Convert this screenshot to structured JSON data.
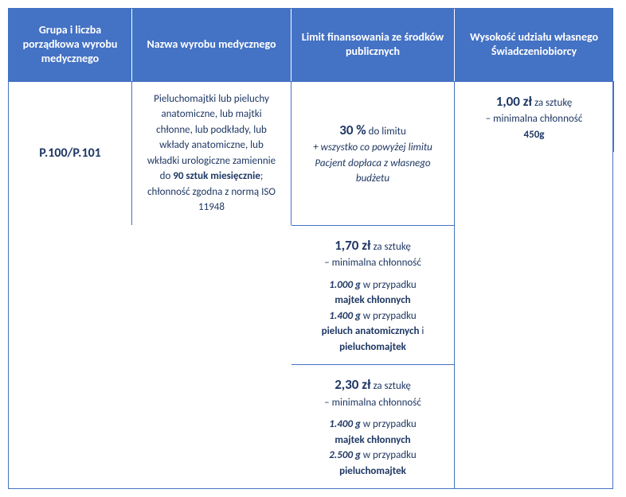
{
  "headers": {
    "col1": "Grupa i liczba porządkowa wyrobu medycznego",
    "col2": "Nazwa wyrobu medycznego",
    "col3": "Limit finansowania ze środków publicznych",
    "col4": "Wysokość udziału własnego Świadczeniobiorcy"
  },
  "group": "P.100/P.101",
  "name": {
    "pre": "Pieluchomajtki lub pieluchy anatomiczne, lub majtki chłonne, lub podkłady, lub wkłady anatomiczne, lub wkładki urologiczne zamiennie do ",
    "bold": "90 sztuk miesięcznie",
    "post": "; chłonność zgodna z normą ISO 11948"
  },
  "limits": {
    "tier1": {
      "price": "1,00 zł",
      "per": " za sztukę",
      "sub": "– minimalna chłonność",
      "g": "450g"
    },
    "tier2": {
      "price": "1,70 zł",
      "per": " za sztukę",
      "sub": "– minimalna chłonność",
      "g1": "1.000 g",
      "case1a": " w przypadku ",
      "case1b": "majtek chłonnych",
      "g2": "1.400 g",
      "case2a": " w przypadku ",
      "case2b": "pieluch anatomicznych",
      "and": " i ",
      "case2c": "pieluchomajtek"
    },
    "tier3": {
      "price": "2,30 zł",
      "per": " za sztukę",
      "sub": "– minimalna chłonność",
      "g1": "1.400 g",
      "case1a": " w przypadku ",
      "case1b": "majtek chłonnych",
      "g2": "2.500 g",
      "case2a": " w przypadku ",
      "case2b": "pieluchomajtek"
    }
  },
  "own": {
    "pct": "30 %",
    "toLimit": " do limitu",
    "note": "+ wszystko co powyżej limitu Pacjent dopłaca z własnego budżetu"
  },
  "colors": {
    "header_bg": "#4472c4",
    "header_fg": "#ffffff",
    "border": "#4472c4",
    "text": "#1f3864"
  }
}
